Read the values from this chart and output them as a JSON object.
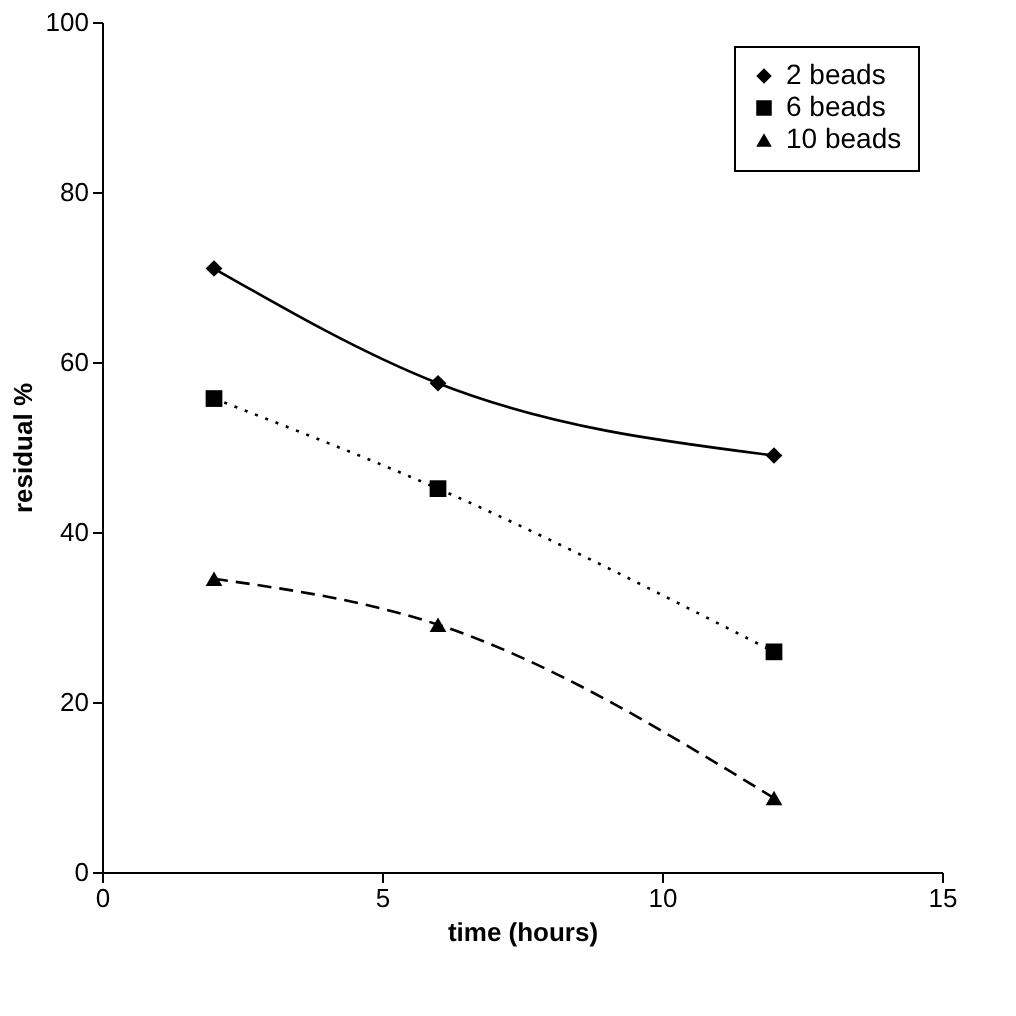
{
  "chart_data": {
    "type": "line",
    "xlabel": "time (hours)",
    "ylabel": "residual %",
    "x": [
      2,
      6,
      12
    ],
    "series": [
      {
        "name": "2 beads",
        "color": "#000000",
        "values": [
          71,
          57.5,
          49
        ],
        "marker": "diamond",
        "line_style": "solid"
      },
      {
        "name": "6 beads",
        "color": "#000000",
        "values": [
          55.7,
          45.1,
          25.9
        ],
        "marker": "square",
        "line_style": "dotted"
      },
      {
        "name": "10 beads",
        "color": "#000000",
        "values": [
          34.5,
          29.1,
          8.7
        ],
        "marker": "triangle",
        "line_style": "dashed"
      }
    ],
    "xlim": [
      0,
      15
    ],
    "xticks": [
      0,
      5,
      10,
      15
    ],
    "ylim": [
      0,
      100
    ],
    "yticks": [
      0,
      20,
      40,
      60,
      80,
      100
    ],
    "grid": false,
    "legend": "top right"
  }
}
